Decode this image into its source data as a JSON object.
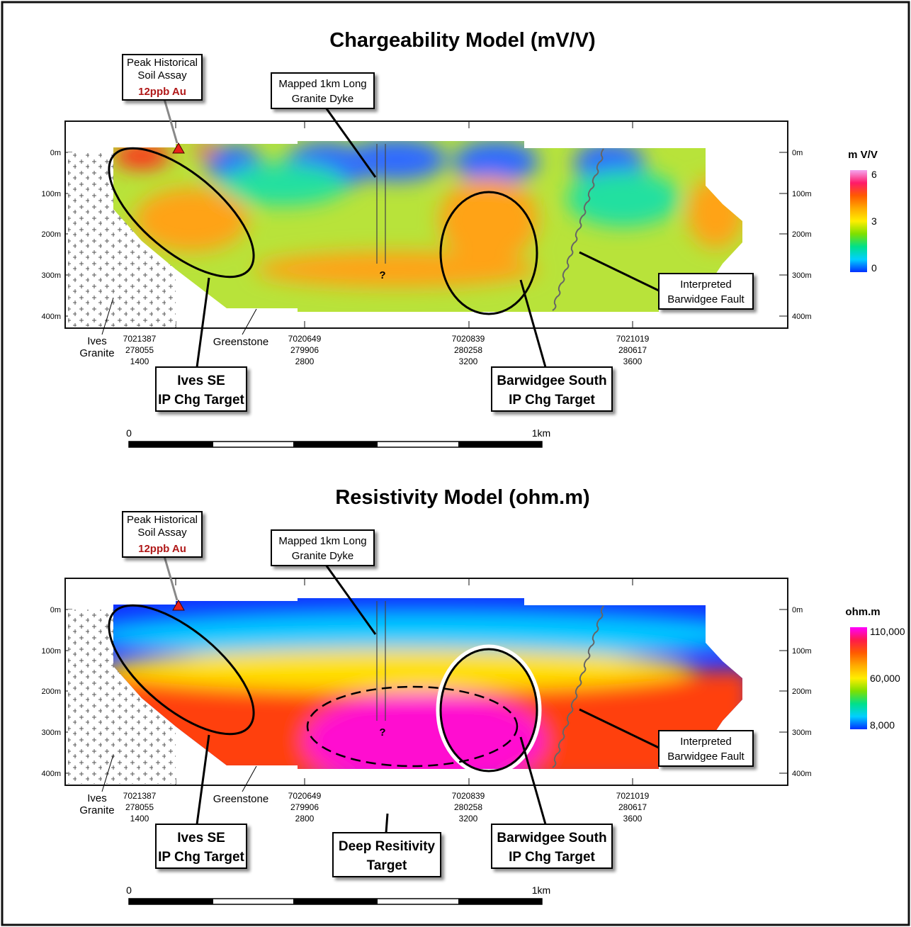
{
  "panels": [
    {
      "title": "Chargeability Model (mV/V)",
      "colorbar_title": "m V/V",
      "colorbar_ticks": [
        "6",
        "3",
        "0"
      ],
      "colorbar_colors": [
        "#f4a6f0",
        "#ff1a6a",
        "#ff5a00",
        "#ffaa00",
        "#ffee00",
        "#7ee000",
        "#00e08a",
        "#00d0ff",
        "#0030ff"
      ],
      "field_colors": {
        "base": "#b8e33a",
        "low": "#2e6bff",
        "mid": "#22e0a0",
        "high": "#ffa318",
        "hot": "#ff2a1a"
      },
      "depth_labels_left": [
        "0m",
        "100m",
        "200m",
        "300m",
        "400m"
      ],
      "depth_labels_right": [
        "0m",
        "100m",
        "200m",
        "300m",
        "400m"
      ],
      "stations": [
        [
          "7021387",
          "278055",
          "1400"
        ],
        [
          "7020649",
          "279906",
          "2800"
        ],
        [
          "7020839",
          "280258",
          "3200"
        ],
        [
          "7021019",
          "280617",
          "3600"
        ]
      ],
      "rock_labels": {
        "ives": "Ives",
        "granite": "Granite",
        "greenstone": "Greenstone"
      },
      "callouts": {
        "soil": [
          "Peak Historical",
          "Soil Assay"
        ],
        "soil_value": "12ppb Au",
        "dyke": [
          "Mapped 1km Long",
          "Granite Dyke"
        ],
        "fault": [
          "Interpreted",
          "Barwidgee Fault"
        ],
        "ives_target": [
          "Ives SE",
          "IP Chg Target"
        ],
        "barwidgee_target": [
          "Barwidgee South",
          "IP Chg Target"
        ]
      },
      "question_mark": "?",
      "scale": {
        "start": "0",
        "end": "1km"
      }
    },
    {
      "title": "Resistivity Model (ohm.m)",
      "colorbar_title": "ohm.m",
      "colorbar_ticks": [
        "110,000",
        "60,000",
        "8,000"
      ],
      "colorbar_colors": [
        "#ff00ff",
        "#ff1a4a",
        "#ff5a00",
        "#ffaa00",
        "#ffee00",
        "#7ee000",
        "#00e08a",
        "#00d0ff",
        "#0030ff"
      ],
      "field_colors": {
        "base": "#1030ff",
        "low": "#00c8ff",
        "mid": "#ffe000",
        "high": "#ff4010",
        "hot": "#ff10d0"
      },
      "depth_labels_left": [
        "0m",
        "100m",
        "200m",
        "300m",
        "400m"
      ],
      "depth_labels_right": [
        "0m",
        "100m",
        "200m",
        "300m",
        "400m"
      ],
      "stations": [
        [
          "7021387",
          "278055",
          "1400"
        ],
        [
          "7020649",
          "279906",
          "2800"
        ],
        [
          "7020839",
          "280258",
          "3200"
        ],
        [
          "7021019",
          "280617",
          "3600"
        ]
      ],
      "rock_labels": {
        "ives": "Ives",
        "granite": "Granite",
        "greenstone": "Greenstone"
      },
      "callouts": {
        "soil": [
          "Peak Historical",
          "Soil Assay"
        ],
        "soil_value": "12ppb Au",
        "dyke": [
          "Mapped 1km Long",
          "Granite Dyke"
        ],
        "fault": [
          "Interpreted",
          "Barwidgee Fault"
        ],
        "ives_target": [
          "Ives SE",
          "IP Chg Target"
        ],
        "barwidgee_target": [
          "Barwidgee South",
          "IP Chg Target"
        ],
        "deep_target": [
          "Deep Resitivity",
          "Target"
        ]
      },
      "question_mark": "?",
      "scale": {
        "start": "0",
        "end": "1km"
      }
    }
  ]
}
